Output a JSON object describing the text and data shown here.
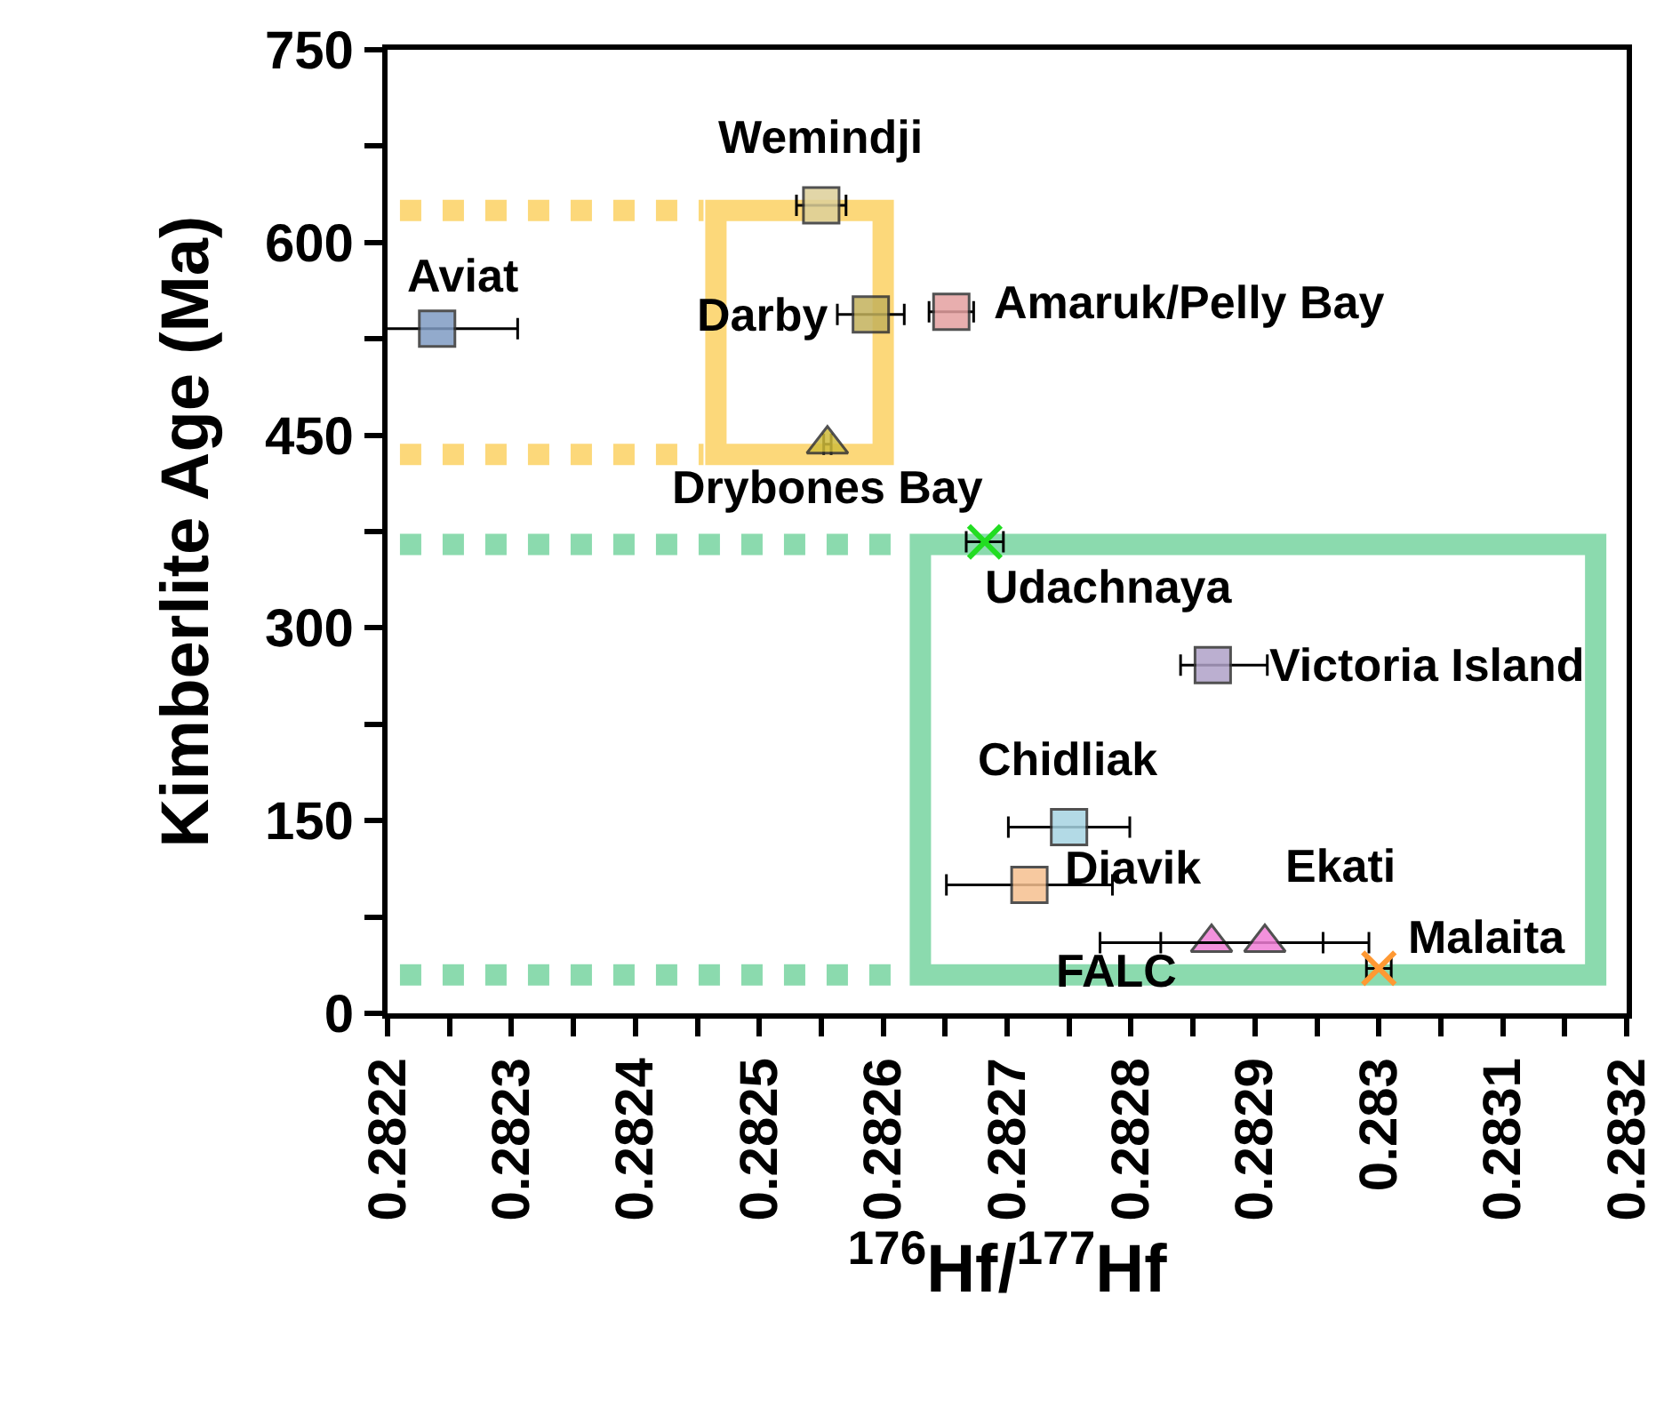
{
  "chart_data": {
    "type": "scatter",
    "xlabel": "$^{176}$Hf/$^{177}$Hf",
    "ylabel": "Kimberlite Age (Ma)",
    "xlim": [
      0.2822,
      0.2832
    ],
    "xticks": [
      0.2822,
      {
        "value": 0.28225,
        "label": null
      },
      0.2823,
      {
        "value": 0.28235,
        "label": null
      },
      0.2824,
      {
        "value": 0.28245,
        "label": null
      },
      0.2825,
      {
        "value": 0.28255,
        "label": null
      },
      0.2826,
      {
        "value": 0.28265,
        "label": null
      },
      0.2827,
      {
        "value": 0.28275,
        "label": null
      },
      0.2828,
      {
        "value": 0.28285,
        "label": null
      },
      0.2829,
      {
        "value": 0.28295,
        "label": null
      },
      0.283,
      {
        "value": 0.28305,
        "label": null
      },
      0.2831,
      {
        "value": 0.28315,
        "label": null
      },
      0.2832
    ],
    "ylim": [
      0,
      750
    ],
    "yticks": [
      0,
      {
        "value": 75,
        "label": null
      },
      150,
      {
        "value": 225,
        "label": null
      },
      300,
      {
        "value": 375,
        "label": null
      },
      450,
      {
        "value": 525,
        "label": null
      },
      600,
      {
        "value": 675,
        "label": null
      },
      750
    ],
    "grid": false,
    "legend": false,
    "series": [
      {
        "name": "Aviat",
        "color": "#7f9cc4",
        "marker": "square",
        "x": [
          0.28224
        ],
        "values": [
          533
        ],
        "xerrors": [
          6.5e-05
        ]
      },
      {
        "name": "Wemindji",
        "color": "#ddd09a",
        "marker": "square",
        "x": [
          0.28255
        ],
        "values": [
          629
        ],
        "xerrors": [
          2e-05
        ]
      },
      {
        "name": "Darby",
        "color": "#c4b25c",
        "marker": "square",
        "x": [
          0.28259
        ],
        "values": [
          544
        ],
        "xerrors": [
          2.7e-05
        ]
      },
      {
        "name": "Amaruk/Pelly Bay",
        "color": "#e4a0a0",
        "marker": "square",
        "x": [
          0.282655
        ],
        "values": [
          546
        ],
        "xerrors": [
          1.8e-05
        ]
      },
      {
        "name": "Drybones Bay",
        "color": "#d0bc3c",
        "marker": "triangle",
        "x": [
          0.282555
        ],
        "values": [
          443
        ],
        "xerrors": [
          3e-06
        ]
      },
      {
        "name": "Udachnaya",
        "color": "#22dd22",
        "marker": "cross",
        "x": [
          0.282682
        ],
        "values": [
          367
        ],
        "xerrors": [
          1.5e-05
        ]
      },
      {
        "name": "Victoria Island",
        "color": "#b0a2c8",
        "marker": "square",
        "x": [
          0.282866
        ],
        "values": [
          271
        ],
        "xerrors": [
          [
            0.28284,
            0.28291
          ]
        ]
      },
      {
        "name": "Chidliak",
        "color": "#a6d4e2",
        "marker": "square",
        "x": [
          0.28275
        ],
        "values": [
          145
        ],
        "xerrors": [
          4.9e-05
        ]
      },
      {
        "name": "Diavik",
        "color": "#f6c090",
        "marker": "square",
        "x": [
          0.282718
        ],
        "values": [
          100
        ],
        "xerrors": [
          6.7e-05
        ]
      },
      {
        "name": "FALC",
        "color": "#f07ed6",
        "marker": "triangle",
        "x": [
          0.282865
        ],
        "values": [
          55
        ],
        "xerrors": [
          9e-05
        ]
      },
      {
        "name": "Ekati",
        "color": "#f07ed6",
        "marker": "triangle",
        "x": [
          0.282908
        ],
        "values": [
          55
        ],
        "xerrors": [
          8.4e-05
        ]
      },
      {
        "name": "Malaita",
        "color": "#ff9933",
        "marker": "cross",
        "x": [
          0.283
        ],
        "values": [
          35
        ],
        "xerrors": [
          1e-05
        ]
      }
    ],
    "ref_lines": [
      {
        "axis": "y",
        "value": 625,
        "color": "#fcd46c",
        "line_style": "dotted"
      },
      {
        "axis": "y",
        "value": 435,
        "color": "#fcd46c",
        "line_style": "dotted"
      },
      {
        "axis": "y",
        "value": 365,
        "color": "#7fd6a6",
        "line_style": "dotted"
      },
      {
        "axis": "y",
        "value": 30,
        "color": "#7fd6a6",
        "line_style": "dotted"
      }
    ]
  }
}
